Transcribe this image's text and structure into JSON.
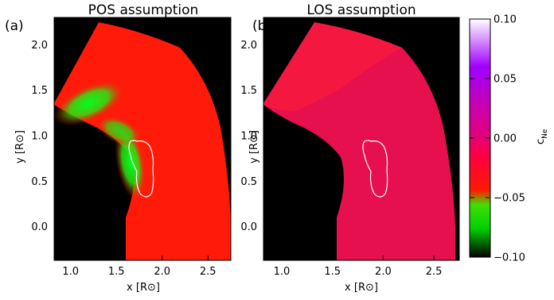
{
  "chart_data": [
    {
      "type": "heatmap",
      "panel_label": "(a)",
      "title": "POS assumption",
      "xlabel": "x [R⊙]",
      "ylabel": "y [R⊙]",
      "xlim": [
        0.82,
        2.75
      ],
      "ylim": [
        -0.37,
        2.3
      ],
      "xticks": [
        "1.0",
        "1.5",
        "2.0",
        "2.5"
      ],
      "yticks": [
        "0.0",
        "0.5",
        "1.0",
        "1.5",
        "2.0"
      ],
      "background": "#000000",
      "field_base_value": -0.05,
      "green_band_value": -0.09,
      "contour": "white closed contour"
    },
    {
      "type": "heatmap",
      "panel_label": "(b)",
      "title": "LOS assumption",
      "xlabel": "x [R⊙]",
      "ylabel": "y [R⊙]",
      "xlim": [
        0.82,
        2.75
      ],
      "ylim": [
        -0.37,
        2.3
      ],
      "xticks": [
        "1.0",
        "1.5",
        "2.0",
        "2.5"
      ],
      "yticks": [
        "0.0",
        "0.5",
        "1.0",
        "1.5",
        "2.0"
      ],
      "background": "#000000",
      "field_base_value": -0.03,
      "contour": "white closed contour"
    }
  ],
  "colorbar": {
    "label_main": "c",
    "label_sub": "Ne",
    "range": [
      -0.1,
      0.1
    ],
    "ticks": [
      "0.10",
      "0.05",
      "0.00",
      "−0.05",
      "−0.10"
    ],
    "colors": {
      "low": "#000000",
      "green": "#00ff00",
      "red": "#ff0000",
      "magenta": "#cc00aa",
      "violet": "#a000ff",
      "high": "#ffffff"
    }
  }
}
